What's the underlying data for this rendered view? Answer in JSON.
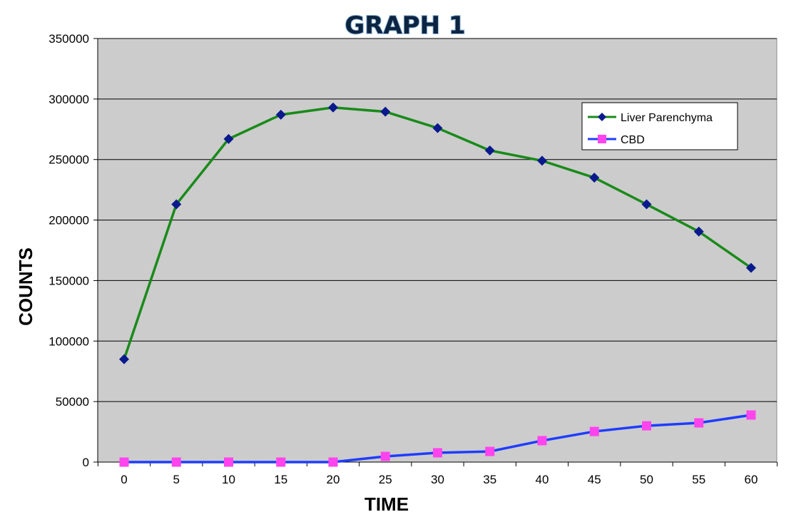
{
  "chart_data": {
    "type": "line",
    "title": "GRAPH 1",
    "xlabel": "TIME",
    "ylabel": "COUNTS",
    "categories": [
      "0",
      "5",
      "10",
      "15",
      "20",
      "25",
      "30",
      "35",
      "40",
      "45",
      "50",
      "55",
      "60"
    ],
    "ylim": [
      0,
      350000
    ],
    "yticks": [
      "0",
      "50000",
      "100000",
      "150000",
      "200000",
      "250000",
      "300000",
      "350000"
    ],
    "grid": true,
    "legend_position": "top-right",
    "series": [
      {
        "name": "Liver Parenchyma",
        "color": "#1a8a1a",
        "marker_color": "#0a1a8c",
        "marker": "diamond",
        "values": [
          85000,
          213000,
          267000,
          287000,
          293000,
          289500,
          276000,
          257500,
          249000,
          235000,
          213000,
          190500,
          160500
        ]
      },
      {
        "name": "CBD",
        "color": "#1f3cff",
        "marker_color": "#ff44ee",
        "marker": "square",
        "values": [
          0,
          0,
          0,
          0,
          0,
          4700,
          7700,
          8800,
          17700,
          25300,
          30000,
          32400,
          38900
        ]
      }
    ]
  }
}
